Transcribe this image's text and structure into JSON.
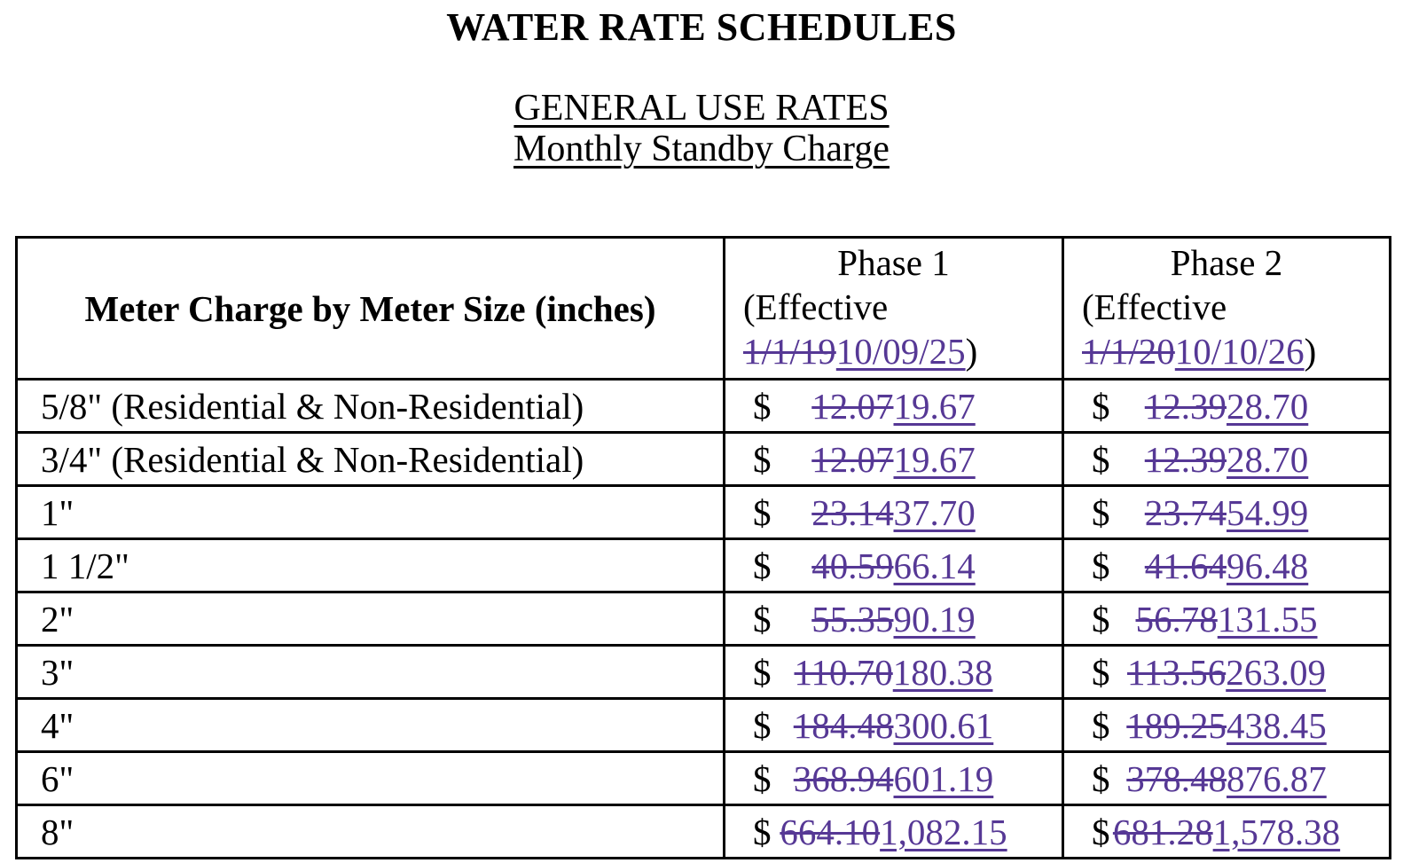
{
  "page": {
    "title": "WATER RATE SCHEDULES",
    "subtitle1": "GENERAL USE RATES",
    "subtitle2": "Monthly Standby Charge"
  },
  "colors": {
    "revision_purple": "#563895",
    "text": "#000000",
    "border": "#000000",
    "background": "#ffffff"
  },
  "table": {
    "currency_symbol": "$",
    "header": {
      "col1": "Meter Charge by Meter Size (inches)",
      "phase1": {
        "title": "Phase 1",
        "effective_prefix": "(Effective",
        "old_date": "1/1/19",
        "new_date": "10/09/25",
        "suffix": ")"
      },
      "phase2": {
        "title": "Phase 2",
        "effective_prefix": "(Effective",
        "old_date": "1/1/20",
        "new_date": "10/10/26",
        "suffix": ")"
      }
    },
    "rows": [
      {
        "label": "5/8\" (Residential & Non-Residential)",
        "phase1_old": "12.07",
        "phase1_new": "19.67",
        "phase2_old": "12.39",
        "phase2_new": "28.70"
      },
      {
        "label": "3/4\" (Residential & Non-Residential)",
        "phase1_old": "12.07",
        "phase1_new": "19.67",
        "phase2_old": "12.39",
        "phase2_new": "28.70"
      },
      {
        "label": "1\"",
        "phase1_old": "23.14",
        "phase1_new": "37.70",
        "phase2_old": "23.74",
        "phase2_new": "54.99"
      },
      {
        "label": "1 1/2\"",
        "phase1_old": "40.59",
        "phase1_new": "66.14",
        "phase2_old": "41.64",
        "phase2_new": "96.48"
      },
      {
        "label": "2\"",
        "phase1_old": "55.35",
        "phase1_new": "90.19",
        "phase2_old": "56.78",
        "phase2_new": "131.55"
      },
      {
        "label": "3\"",
        "phase1_old": "110.70",
        "phase1_new": "180.38",
        "phase2_old": "113.56",
        "phase2_new": "263.09"
      },
      {
        "label": "4\"",
        "phase1_old": "184.48",
        "phase1_new": "300.61",
        "phase2_old": "189.25",
        "phase2_new": "438.45"
      },
      {
        "label": "6\"",
        "phase1_old": "368.94",
        "phase1_new": "601.19",
        "phase2_old": "378.48",
        "phase2_new": "876.87"
      },
      {
        "label": "8\"",
        "phase1_old": "664.10",
        "phase1_new": "1,082.15",
        "phase2_old": "681.28",
        "phase2_new": "1,578.38"
      }
    ]
  }
}
